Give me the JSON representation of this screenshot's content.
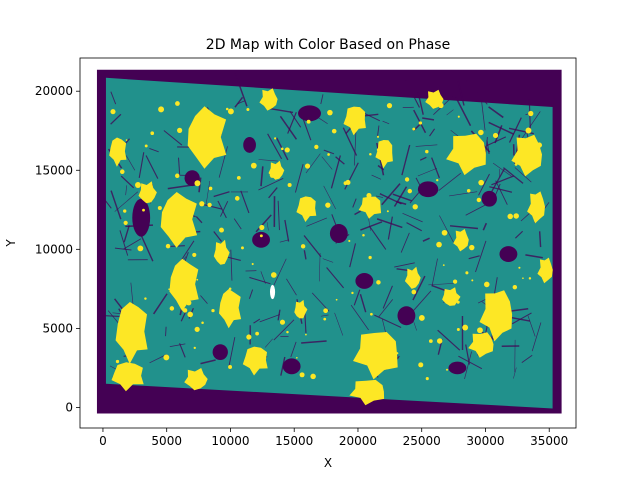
{
  "chart_data": {
    "type": "scatter",
    "title": "2D Map with Color Based on Phase",
    "xlabel": "X",
    "ylabel": "Y",
    "xlim": [
      -1800,
      37100
    ],
    "ylim": [
      -1300,
      22100
    ],
    "xticks": [
      0,
      5000,
      10000,
      15000,
      20000,
      25000,
      30000,
      35000
    ],
    "yticks": [
      0,
      5000,
      10000,
      15000,
      20000
    ],
    "grid": false,
    "colormap": "viridis",
    "phase_colors": {
      "low": "#440154",
      "mid": "#21918c",
      "high": "#fde725"
    },
    "map_extent": {
      "x": [
        0,
        35500
      ],
      "y_bottom_left": 1500,
      "y_bottom_right": 0,
      "y_top_left": 21100,
      "y_top_right": 19000
    },
    "yellow_regions": [
      {
        "x": 8200,
        "y": 17100,
        "rx": 1600,
        "ry": 1900
      },
      {
        "x": 6000,
        "y": 11900,
        "rx": 1500,
        "ry": 1700
      },
      {
        "x": 6400,
        "y": 7800,
        "rx": 1200,
        "ry": 1600
      },
      {
        "x": 10000,
        "y": 6300,
        "rx": 900,
        "ry": 1200
      },
      {
        "x": 2300,
        "y": 4800,
        "rx": 1300,
        "ry": 1900
      },
      {
        "x": 1200,
        "y": 16200,
        "rx": 700,
        "ry": 900
      },
      {
        "x": 2000,
        "y": 2000,
        "rx": 1300,
        "ry": 900
      },
      {
        "x": 12000,
        "y": 3000,
        "rx": 1000,
        "ry": 900
      },
      {
        "x": 16000,
        "y": 12600,
        "rx": 800,
        "ry": 800
      },
      {
        "x": 19800,
        "y": 18200,
        "rx": 900,
        "ry": 900
      },
      {
        "x": 22100,
        "y": 16100,
        "rx": 700,
        "ry": 900
      },
      {
        "x": 21000,
        "y": 12700,
        "rx": 900,
        "ry": 700
      },
      {
        "x": 21500,
        "y": 3400,
        "rx": 1800,
        "ry": 1500
      },
      {
        "x": 20800,
        "y": 1000,
        "rx": 1400,
        "ry": 800
      },
      {
        "x": 28600,
        "y": 16100,
        "rx": 1600,
        "ry": 1300
      },
      {
        "x": 30900,
        "y": 5900,
        "rx": 1300,
        "ry": 1600
      },
      {
        "x": 29700,
        "y": 4000,
        "rx": 1000,
        "ry": 800
      },
      {
        "x": 33300,
        "y": 16000,
        "rx": 1200,
        "ry": 1300
      },
      {
        "x": 34000,
        "y": 12700,
        "rx": 700,
        "ry": 1000
      },
      {
        "x": 34700,
        "y": 8700,
        "rx": 600,
        "ry": 800
      },
      {
        "x": 28100,
        "y": 10600,
        "rx": 600,
        "ry": 700
      },
      {
        "x": 13000,
        "y": 19500,
        "rx": 700,
        "ry": 700
      },
      {
        "x": 26000,
        "y": 19500,
        "rx": 700,
        "ry": 600
      },
      {
        "x": 7300,
        "y": 1800,
        "rx": 900,
        "ry": 700
      },
      {
        "x": 24300,
        "y": 8200,
        "rx": 600,
        "ry": 700
      },
      {
        "x": 13600,
        "y": 15000,
        "rx": 600,
        "ry": 600
      },
      {
        "x": 3500,
        "y": 13600,
        "rx": 700,
        "ry": 700
      },
      {
        "x": 9300,
        "y": 9800,
        "rx": 600,
        "ry": 800
      },
      {
        "x": 27300,
        "y": 7000,
        "rx": 700,
        "ry": 600
      },
      {
        "x": 15500,
        "y": 6200,
        "rx": 500,
        "ry": 600
      }
    ],
    "purple_regions": [
      {
        "x": 3000,
        "y": 12000,
        "rx": 700,
        "ry": 1200
      },
      {
        "x": 16200,
        "y": 18600,
        "rx": 900,
        "ry": 500
      },
      {
        "x": 18500,
        "y": 11000,
        "rx": 700,
        "ry": 600
      },
      {
        "x": 25500,
        "y": 13800,
        "rx": 800,
        "ry": 500
      },
      {
        "x": 23800,
        "y": 5800,
        "rx": 700,
        "ry": 600
      },
      {
        "x": 12400,
        "y": 10600,
        "rx": 700,
        "ry": 500
      },
      {
        "x": 9200,
        "y": 3500,
        "rx": 600,
        "ry": 500
      },
      {
        "x": 31800,
        "y": 9700,
        "rx": 700,
        "ry": 500
      },
      {
        "x": 20500,
        "y": 8000,
        "rx": 700,
        "ry": 500
      },
      {
        "x": 7000,
        "y": 14500,
        "rx": 600,
        "ry": 500
      },
      {
        "x": 27800,
        "y": 2500,
        "rx": 700,
        "ry": 400
      },
      {
        "x": 14800,
        "y": 2600,
        "rx": 700,
        "ry": 500
      },
      {
        "x": 30300,
        "y": 13200,
        "rx": 600,
        "ry": 500
      },
      {
        "x": 11500,
        "y": 16600,
        "rx": 500,
        "ry": 500
      }
    ],
    "white_gaps": [
      {
        "x": 13300,
        "y": 7300,
        "rx": 200,
        "ry": 450
      }
    ]
  }
}
